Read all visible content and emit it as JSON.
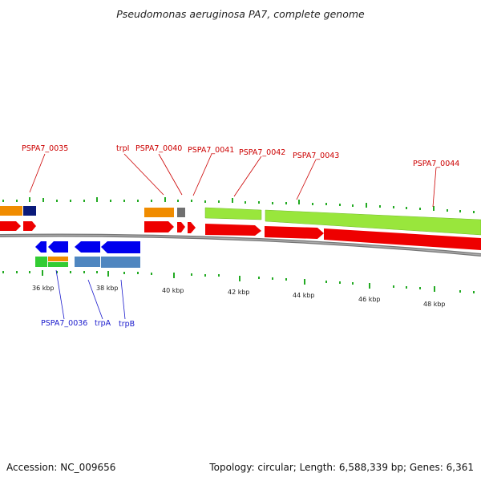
{
  "title": "Pseudomonas aeruginosa PA7, complete genome",
  "footer": {
    "accession": "Accession: NC_009656",
    "summary": "Topology: circular; Length: 6,588,339 bp; Genes: 6,361"
  },
  "colors": {
    "backbone": "#888888",
    "tick": "#22aa22",
    "label_forward": "#cc0000",
    "label_reverse": "#1a1acc",
    "cds_forward": "#ee0000",
    "cds_reverse": "#0000ee",
    "orange": "#f08c00",
    "navy": "#0a1a7a",
    "gray": "#707070",
    "lime": "#99e63c",
    "steel": "#4f86c0",
    "green": "#33cc33"
  },
  "kbp_labels": [
    "36 kbp",
    "38 kbp",
    "40 kbp",
    "42 kbp",
    "44 kbp",
    "46 kbp",
    "48 kbp"
  ],
  "forward_labels": [
    "PSPA7_0035",
    "trpI",
    "PSPA7_0040",
    "PSPA7_0041",
    "PSPA7_0042",
    "PSPA7_0043",
    "PSPA7_0044"
  ],
  "reverse_labels": [
    "PSPA7_0036",
    "trpA",
    "trpB"
  ]
}
